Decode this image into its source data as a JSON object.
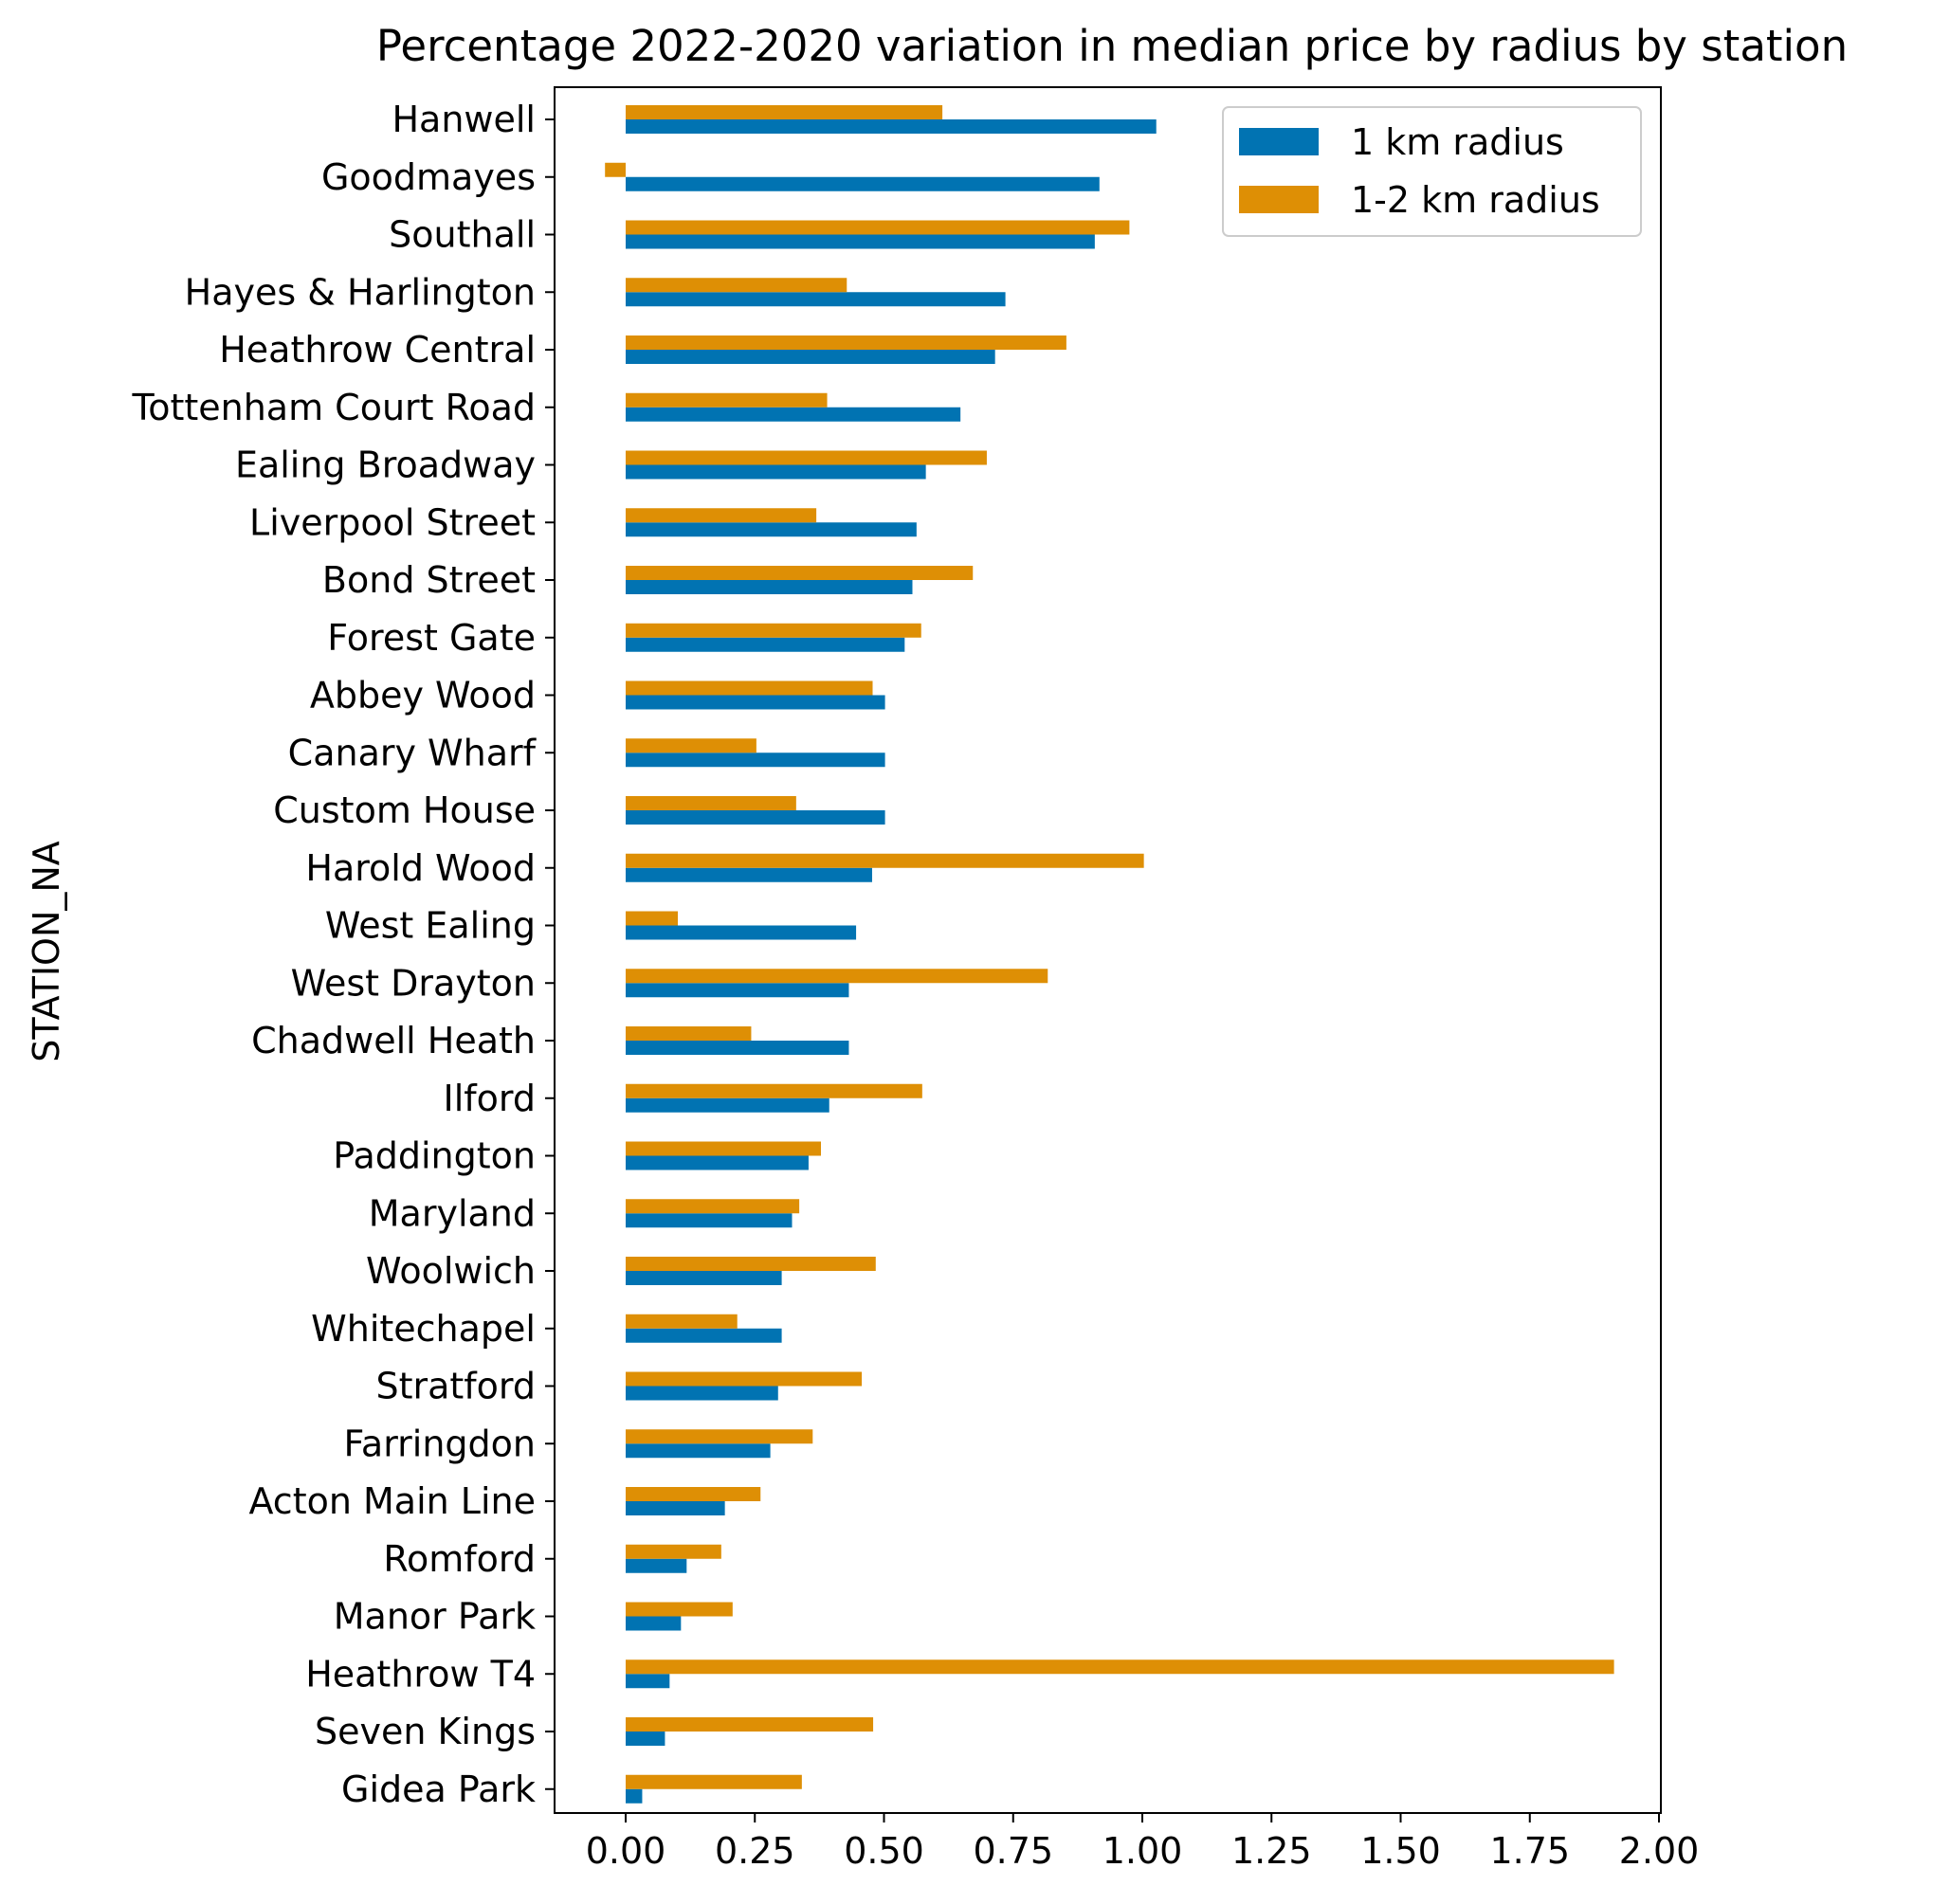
{
  "chart_data": {
    "type": "bar",
    "orientation": "horizontal",
    "title": "Percentage 2022-2020 variation in median price by radius by station",
    "xlabel": "",
    "ylabel": "STATION_NA",
    "xlim": [
      -0.135,
      2.0
    ],
    "xticks": [
      "0.00",
      "0.25",
      "0.50",
      "0.75",
      "1.00",
      "1.25",
      "1.50",
      "1.75",
      "2.00"
    ],
    "grid": false,
    "legend_position": "top-right",
    "categories": [
      "Hanwell",
      "Goodmayes",
      "Southall",
      "Hayes & Harlington",
      "Heathrow Central",
      "Tottenham Court Road",
      "Ealing Broadway",
      "Liverpool Street",
      "Bond Street",
      "Forest Gate",
      "Abbey Wood",
      "Canary Wharf",
      "Custom House",
      "Harold Wood",
      "West Ealing",
      "West Drayton",
      "Chadwell Heath",
      "Ilford",
      "Paddington",
      "Maryland",
      "Woolwich",
      "Whitechapel",
      "Stratford",
      "Farringdon",
      "Acton Main Line",
      "Romford",
      "Manor Park",
      "Heathrow T4",
      "Seven Kings",
      "Gidea Park"
    ],
    "series": [
      {
        "name": "1 km radius",
        "color": "#0173b2",
        "values": [
          1.027,
          0.917,
          0.908,
          0.735,
          0.715,
          0.648,
          0.581,
          0.563,
          0.555,
          0.54,
          0.502,
          0.502,
          0.502,
          0.477,
          0.446,
          0.432,
          0.432,
          0.394,
          0.354,
          0.322,
          0.302,
          0.302,
          0.295,
          0.28,
          0.192,
          0.118,
          0.107,
          0.085,
          0.076,
          0.032
        ]
      },
      {
        "name": "1-2 km radius",
        "color": "#de8f05",
        "values": [
          0.613,
          -0.04,
          0.975,
          0.428,
          0.853,
          0.39,
          0.699,
          0.369,
          0.672,
          0.572,
          0.478,
          0.253,
          0.33,
          1.003,
          0.101,
          0.817,
          0.243,
          0.574,
          0.378,
          0.336,
          0.484,
          0.216,
          0.457,
          0.362,
          0.261,
          0.185,
          0.207,
          1.913,
          0.479,
          0.341
        ]
      }
    ]
  }
}
